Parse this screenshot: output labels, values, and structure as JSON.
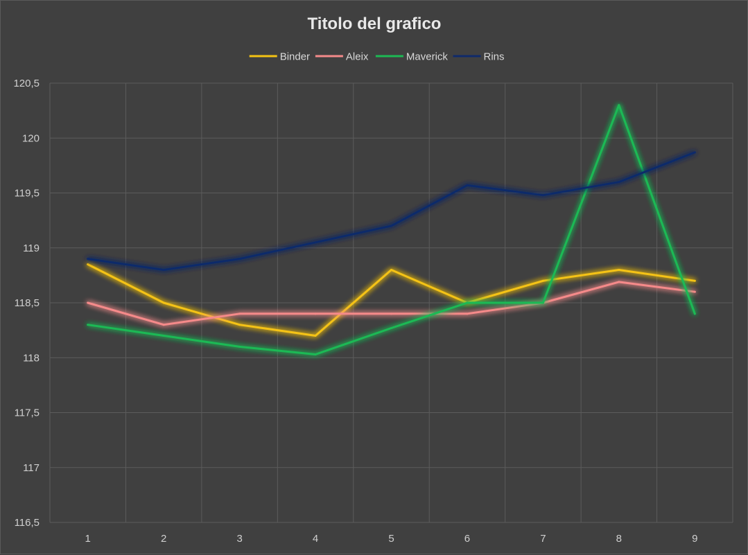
{
  "chart_data": {
    "type": "line",
    "title": "Titolo del grafico",
    "xlabel": "",
    "ylabel": "",
    "categories": [
      "1",
      "2",
      "3",
      "4",
      "5",
      "6",
      "7",
      "8",
      "9"
    ],
    "ylim": [
      116.5,
      120.5
    ],
    "yticks": [
      116.5,
      117,
      117.5,
      118,
      118.5,
      119,
      119.5,
      120,
      120.5
    ],
    "ytick_labels": [
      "116,5",
      "117",
      "117,5",
      "118",
      "118,5",
      "119",
      "119,5",
      "120",
      "120,5"
    ],
    "grid": true,
    "legend_position": "top",
    "series": [
      {
        "name": "Binder",
        "color": "#f5c313",
        "values": [
          118.85,
          118.5,
          118.3,
          118.2,
          118.8,
          118.5,
          118.7,
          118.8,
          118.7
        ]
      },
      {
        "name": "Aleix",
        "color": "#f58a8a",
        "values": [
          118.5,
          118.3,
          118.4,
          118.4,
          118.4,
          118.4,
          118.5,
          118.69,
          118.6
        ]
      },
      {
        "name": "Maverick",
        "color": "#1db954",
        "values": [
          118.3,
          118.2,
          118.1,
          118.03,
          118.27,
          118.5,
          118.5,
          120.3,
          118.4
        ]
      },
      {
        "name": "Rins",
        "color": "#0f2a6b",
        "values": [
          118.9,
          118.8,
          118.9,
          119.05,
          119.2,
          119.57,
          119.48,
          119.6,
          119.87
        ]
      }
    ]
  }
}
